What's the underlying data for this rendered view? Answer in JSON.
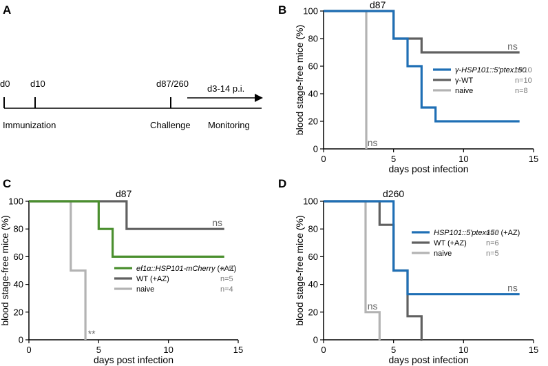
{
  "panel_A": {
    "letter": "A",
    "timepoints": [
      "d0",
      "d10",
      "d87/260"
    ],
    "arrow_label": "d3-14 p.i.",
    "phases": [
      "Immunization",
      "Challenge",
      "Monitoring"
    ]
  },
  "chart_data": [
    {
      "panel": "B",
      "type": "line",
      "step": true,
      "title": "d87",
      "xlabel": "days post infection",
      "ylabel": "blood stage-free mice (%)",
      "xlim": [
        0,
        15
      ],
      "ylim": [
        0,
        100
      ],
      "xticks": [
        "0",
        "5",
        "10",
        "15"
      ],
      "yticks": [
        "0",
        "20",
        "40",
        "60",
        "80",
        "100"
      ],
      "series": [
        {
          "name": "γ-HSP101::5'ptex150",
          "italic": true,
          "n": "n=10",
          "color": "#1f6fb5",
          "x": [
            0,
            5,
            6,
            7,
            8,
            14
          ],
          "y": [
            100,
            80,
            60,
            30,
            20,
            20
          ]
        },
        {
          "name": "γ-WT",
          "italic": false,
          "n": "n=10",
          "color": "#606060",
          "x": [
            0,
            5,
            6,
            7,
            14
          ],
          "y": [
            100,
            80,
            80,
            70,
            70
          ]
        },
        {
          "name": "naive",
          "italic": false,
          "n": "n=8",
          "color": "#b3b3b3",
          "x": [
            0,
            3,
            3.05
          ],
          "y": [
            100,
            100,
            0
          ]
        }
      ],
      "annotations": [
        {
          "text": "ns",
          "x": 13.5,
          "y": 70,
          "color": "#666666"
        },
        {
          "text": "ns",
          "x": 3.5,
          "y": 0,
          "color": "#b3b3b3"
        }
      ]
    },
    {
      "panel": "C",
      "type": "line",
      "step": true,
      "title": "d87",
      "xlabel": "days post infection",
      "ylabel": "blood stage-free mice (%)",
      "xlim": [
        0,
        15
      ],
      "ylim": [
        0,
        100
      ],
      "xticks": [
        "0",
        "5",
        "10",
        "15"
      ],
      "yticks": [
        "0",
        "20",
        "40",
        "60",
        "80",
        "100"
      ],
      "series": [
        {
          "name": "ef1α::HSP101-mCherry",
          "suffix": " (+AZ)",
          "italic": true,
          "n": "n=5",
          "color": "#4a8f2e",
          "x": [
            0,
            5,
            6,
            14
          ],
          "y": [
            100,
            80,
            60,
            60
          ]
        },
        {
          "name": "WT (+AZ)",
          "italic": false,
          "n": "n=5",
          "color": "#606060",
          "x": [
            0,
            7,
            14
          ],
          "y": [
            100,
            80,
            80
          ]
        },
        {
          "name": "naive",
          "italic": false,
          "n": "n=4",
          "color": "#b3b3b3",
          "x": [
            0,
            3,
            4,
            4.05
          ],
          "y": [
            100,
            50,
            50,
            0
          ]
        }
      ],
      "annotations": [
        {
          "text": "ns",
          "x": 13.5,
          "y": 80,
          "color": "#666666"
        },
        {
          "text": "**",
          "x": 4.5,
          "y": 0,
          "color": "#cccccc"
        }
      ]
    },
    {
      "panel": "D",
      "type": "line",
      "step": true,
      "title": "d260",
      "xlabel": "days post infection",
      "ylabel": "blood stage-free mice (%)",
      "xlim": [
        0,
        15
      ],
      "ylim": [
        0,
        100
      ],
      "xticks": [
        "0",
        "5",
        "10",
        "15"
      ],
      "yticks": [
        "0",
        "20",
        "40",
        "60",
        "80",
        "100"
      ],
      "series": [
        {
          "name": "HSP101::5'ptex150",
          "suffix": " (+AZ)",
          "italic": true,
          "n": "n=6",
          "color": "#1f6fb5",
          "x": [
            0,
            5,
            6,
            14
          ],
          "y": [
            100,
            50,
            33,
            33
          ]
        },
        {
          "name": "WT (+AZ)",
          "italic": false,
          "n": "n=6",
          "color": "#606060",
          "x": [
            0,
            4,
            5,
            6,
            7,
            7.05
          ],
          "y": [
            100,
            83,
            50,
            17,
            0,
            0
          ]
        },
        {
          "name": "naive",
          "italic": false,
          "n": "n=5",
          "color": "#b3b3b3",
          "x": [
            0,
            3,
            4,
            4.05
          ],
          "y": [
            100,
            20,
            0,
            0
          ]
        }
      ],
      "annotations": [
        {
          "text": "ns",
          "x": 13.5,
          "y": 33,
          "color": "#666666"
        },
        {
          "text": "ns",
          "x": 3.5,
          "y": 20,
          "color": "#666666"
        }
      ]
    }
  ]
}
